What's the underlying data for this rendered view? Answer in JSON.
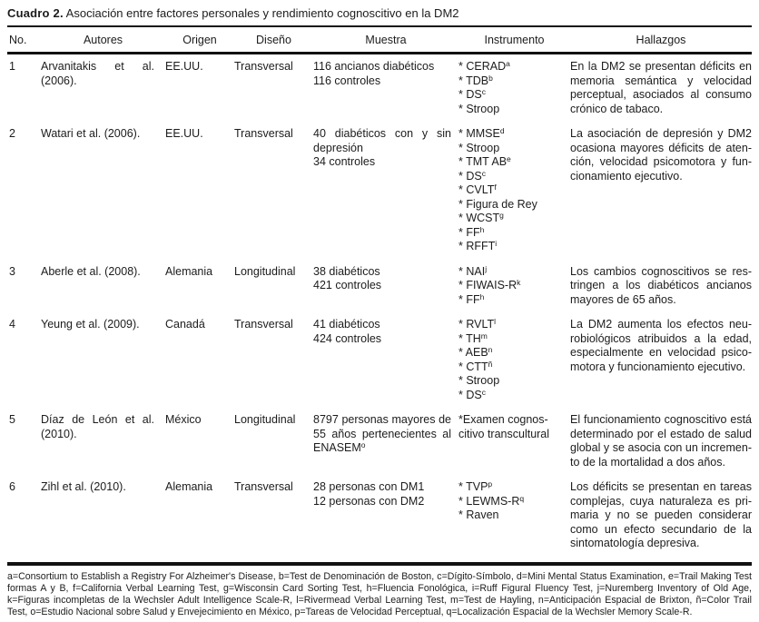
{
  "title": {
    "label": "Cuadro 2.",
    "caption": "Asociación entre factores personales y rendimiento cognoscitivo en la DM2"
  },
  "table": {
    "headers": [
      "No.",
      "Autores",
      "Origen",
      "Diseño",
      "Muestra",
      "Instrumento",
      "Hallazgos"
    ],
    "rows": [
      {
        "no": "1",
        "autores": "Arvanitakis et al. (2006).",
        "origen": "EE.UU.",
        "diseno": "Transversal",
        "muestra": [
          {
            "text": "116 ancianos diabéticos"
          },
          {
            "text": "116 controles"
          }
        ],
        "instrumento": [
          {
            "text": "* CERAD",
            "sup": "a"
          },
          {
            "text": "* TDB",
            "sup": "b"
          },
          {
            "text": "* DS",
            "sup": "c"
          },
          {
            "text": "* Stroop"
          }
        ],
        "hallazgos": "En la DM2 se presentan déficits en memoria semántica y velocidad perceptual, asociados al consumo crónico de tabaco."
      },
      {
        "no": "2",
        "autores": "Watari et al. (2006).",
        "origen": "EE.UU.",
        "diseno": "Transversal",
        "muestra": [
          {
            "text": "40 diabéticos con y sin depresión"
          },
          {
            "text": "34 controles"
          }
        ],
        "instrumento": [
          {
            "text": "* MMSE",
            "sup": "d"
          },
          {
            "text": "* Stroop"
          },
          {
            "text": "* TMT AB",
            "sup": "e"
          },
          {
            "text": "* DS",
            "sup": "c"
          },
          {
            "text": "* CVLT",
            "sup": "f"
          },
          {
            "text": "* Figura de Rey"
          },
          {
            "text": "* WCST",
            "sup": "g"
          },
          {
            "text": "* FF",
            "sup": "h"
          },
          {
            "text": "* RFFT",
            "sup": "i"
          }
        ],
        "hallazgos": "La asociación de depresión y DM2 ocasiona mayores déficits de aten­ción, velocidad psicomotora y fun­cionamiento ejecutivo."
      },
      {
        "no": "3",
        "autores": "Aberle et al. (2008).",
        "origen": "Alemania",
        "diseno": "Longitudinal",
        "muestra": [
          {
            "text": "38 diabéticos"
          },
          {
            "text": "421 controles"
          }
        ],
        "instrumento": [
          {
            "text": "* NAI",
            "sup": "j"
          },
          {
            "text": "* FIWAIS-R",
            "sup": "k"
          },
          {
            "text": "* FF",
            "sup": "h"
          }
        ],
        "hallazgos": "Los cambios cognoscitivos se res­tringen a los diabéticos ancianos mayores de 65 años."
      },
      {
        "no": "4",
        "autores": "Yeung et al. (2009).",
        "origen": "Canadá",
        "diseno": "Transversal",
        "muestra": [
          {
            "text": "41 diabéticos"
          },
          {
            "text": "424 controles"
          }
        ],
        "instrumento": [
          {
            "text": "* RVLT",
            "sup": "l"
          },
          {
            "text": "* TH",
            "sup": "m"
          },
          {
            "text": "* AEB",
            "sup": "n"
          },
          {
            "text": "* CTT",
            "sup": "ñ"
          },
          {
            "text": "* Stroop"
          },
          {
            "text": "* DS",
            "sup": "c"
          }
        ],
        "hallazgos": "La DM2 aumenta los efectos neu­robiológicos atribuidos a la edad, especialmente en velocidad psico­motora y funcionamiento ejecutivo."
      },
      {
        "no": "5",
        "autores": "Díaz de León et al. (2010).",
        "origen": "México",
        "diseno": "Longitudinal",
        "muestra": [
          {
            "text": "8797 personas mayores de 55 años pertenecien­tes al ENASEM",
            "sup": "o"
          }
        ],
        "instrumento": [
          {
            "text": "*Examen cognos-"
          },
          {
            "text": "citivo transcultural"
          }
        ],
        "hallazgos": "El funcionamiento cognoscitivo está determinado por el estado de salud global y se asocia con un incremen­to de la mortalidad a dos años."
      },
      {
        "no": "6",
        "autores": "Zihl et al. (2010).",
        "origen": "Alemania",
        "diseno": "Transversal",
        "muestra": [
          {
            "text": "28 personas con DM1"
          },
          {
            "text": "12 personas con DM2"
          }
        ],
        "instrumento": [
          {
            "text": "* TVP",
            "sup": "p"
          },
          {
            "text": "* LEWMS-R",
            "sup": "q"
          },
          {
            "text": "* Raven"
          }
        ],
        "hallazgos": "Los déficits se presentan en tareas complejas, cuya naturaleza es pri­maria y no se pueden considerar como un efecto secundario de la sintomatología depresiva."
      }
    ]
  },
  "footnote": "a=Consortium to Establish a Registry For Alzheimer's Disease, b=Test de Denominación de Boston, c=Dígito-Símbolo, d=Mini Mental Status Examination, e=Trail Making Test formas A y B, f=California Verbal Learning Test, g=Wisconsin Card Sorting Test, h=Fluencia Fonológica, i=Ruff Figural Fluency Test, j=Nuremberg Inventory of Old Age, k=Figuras incompletas de la Wechsler Adult Intelligence Scale-R, l=Rivermead Verbal Learning Test, m=Test de Hayling, n=Anticipación Espacial de Brixton, ñ=Color Trail Test, o=Estudio Nacional sobre Salud y Envejecimiento en México, p=Tareas de Velocidad Perceptual, q=Localización Espacial de la Wechsler Memory Scale-R."
}
